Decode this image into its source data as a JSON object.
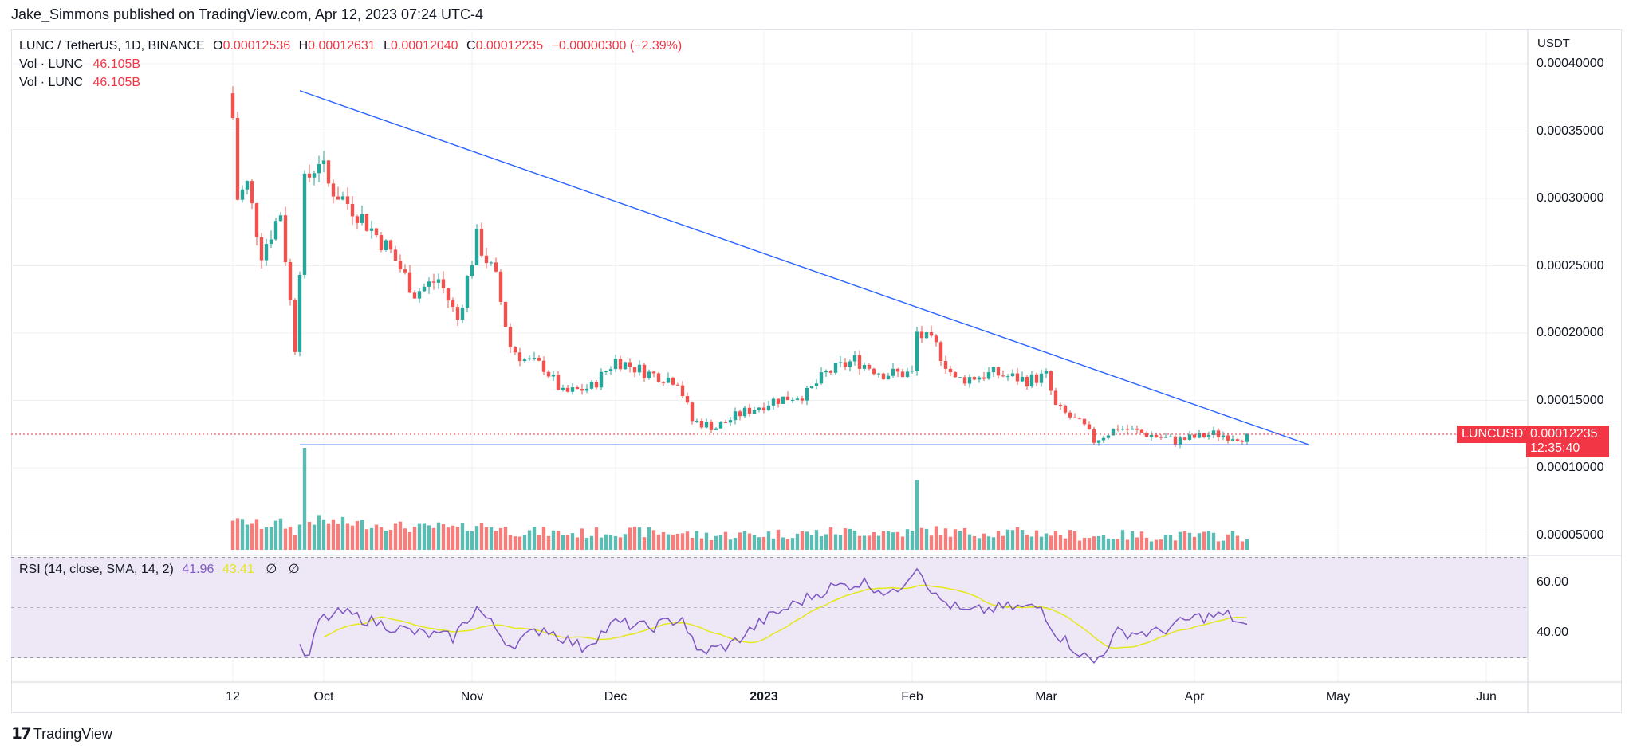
{
  "publisher": "Jake_Simmons published on TradingView.com, Apr 12, 2023 07:24 UTC-4",
  "legend": {
    "symbol": "LUNC / TetherUS, 1D, BINANCE",
    "open_label": "O",
    "open": "0.00012536",
    "high_label": "H",
    "high": "0.00012631",
    "low_label": "L",
    "low": "0.00012040",
    "close_label": "C",
    "close": "0.00012235",
    "change": "−0.00000300 (−2.39%)",
    "vol1_label": "Vol · LUNC",
    "vol1": "46.105B",
    "vol2_label": "Vol · LUNC",
    "vol2": "46.105B"
  },
  "rsi_legend": {
    "label": "RSI (14, close, SMA, 14, 2)",
    "rsi": "41.96",
    "sma": "43.41",
    "icon1": "∅",
    "icon2": "∅"
  },
  "price_axis": {
    "unit": "USDT",
    "ticks": [
      "0.00040000",
      "0.00035000",
      "0.00030000",
      "0.00025000",
      "0.00020000",
      "0.00015000",
      "0.00010000",
      "0.00005000"
    ]
  },
  "rsi_axis": {
    "ticks": [
      "60.00",
      "40.00"
    ]
  },
  "date_axis": {
    "ticks": [
      "12",
      "Oct",
      "Nov",
      "Dec",
      "2023",
      "Feb",
      "Mar",
      "Apr",
      "May",
      "Jun"
    ]
  },
  "current": {
    "pair": "LUNCUSDT",
    "price": "0.00012235",
    "countdown": "12:35:40"
  },
  "brand": "TradingView",
  "colors": {
    "up": "#26a69a",
    "down": "#ef5350",
    "trendline": "#2962ff",
    "rsi": "#7e57c2",
    "rsi_sma": "#e5e81c",
    "rsi_band": "#ede7f6",
    "badge": "#f23645",
    "grid": "#eef0f4"
  },
  "chart_data": {
    "type": "candlestick",
    "title": "LUNC / TetherUS, 1D, BINANCE",
    "x_ticks": [
      "12",
      "Oct",
      "Nov",
      "Dec",
      "2023",
      "Feb",
      "Mar",
      "Apr",
      "May",
      "Jun"
    ],
    "y_unit": "USDT",
    "y_range": [
      3e-05,
      0.00043
    ],
    "last_price": 0.00012235,
    "close_path": [
      [
        "2022-09-12",
        0.00036
      ],
      [
        "2022-09-13",
        0.0003
      ],
      [
        "2022-09-15",
        0.00031
      ],
      [
        "2022-09-18",
        0.00026
      ],
      [
        "2022-09-22",
        0.00029
      ],
      [
        "2022-09-25",
        0.00019
      ],
      [
        "2022-09-27",
        0.00031
      ],
      [
        "2022-09-30",
        0.00033
      ],
      [
        "2022-10-02",
        0.00031
      ],
      [
        "2022-10-08",
        0.00029
      ],
      [
        "2022-10-15",
        0.00026
      ],
      [
        "2022-10-20",
        0.00023
      ],
      [
        "2022-10-25",
        0.00024
      ],
      [
        "2022-10-29",
        0.00021
      ],
      [
        "2022-11-02",
        0.00027
      ],
      [
        "2022-11-06",
        0.00024
      ],
      [
        "2022-11-09",
        0.00019
      ],
      [
        "2022-11-12",
        0.00018
      ],
      [
        "2022-11-16",
        0.000175
      ],
      [
        "2022-11-20",
        0.000155
      ],
      [
        "2022-11-26",
        0.00016
      ],
      [
        "2022-12-01",
        0.00018
      ],
      [
        "2022-12-08",
        0.00017
      ],
      [
        "2022-12-14",
        0.000165
      ],
      [
        "2022-12-17",
        0.000135
      ],
      [
        "2022-12-22",
        0.00013
      ],
      [
        "2022-12-27",
        0.00014
      ],
      [
        "2023-01-03",
        0.00015
      ],
      [
        "2023-01-10",
        0.000155
      ],
      [
        "2023-01-14",
        0.00017
      ],
      [
        "2023-01-20",
        0.00018
      ],
      [
        "2023-01-26",
        0.00017
      ],
      [
        "2023-02-01",
        0.00017
      ],
      [
        "2023-02-02",
        0.0002
      ],
      [
        "2023-02-06",
        0.00019
      ],
      [
        "2023-02-10",
        0.000165
      ],
      [
        "2023-02-18",
        0.00017
      ],
      [
        "2023-02-25",
        0.000165
      ],
      [
        "2023-03-01",
        0.000168
      ],
      [
        "2023-03-03",
        0.000145
      ],
      [
        "2023-03-09",
        0.00013
      ],
      [
        "2023-03-11",
        0.00012
      ],
      [
        "2023-03-16",
        0.00013
      ],
      [
        "2023-03-22",
        0.000125
      ],
      [
        "2023-03-28",
        0.00012
      ],
      [
        "2023-04-05",
        0.000125
      ],
      [
        "2023-04-12",
        0.00012235
      ]
    ],
    "annotations": [
      {
        "type": "trendline",
        "from": [
          "2022-09-26",
          0.00038
        ],
        "to": [
          "2023-04-25",
          0.000117
        ]
      },
      {
        "type": "horizontal",
        "from": [
          "2022-09-26",
          0.000117
        ],
        "to": [
          "2023-04-25",
          0.000117
        ]
      }
    ],
    "volume_spikes": [
      {
        "date": "2022-09-27",
        "note": "largest"
      },
      {
        "date": "2023-02-02",
        "note": "second largest"
      }
    ],
    "rsi": {
      "period": 14,
      "sma": 14,
      "last_rsi": 41.96,
      "last_sma": 43.41,
      "bands": [
        30,
        70
      ],
      "midline": 50,
      "path": [
        [
          "2022-09-26",
          33
        ],
        [
          "2022-09-28",
          30
        ],
        [
          "2022-09-30",
          45
        ],
        [
          "2022-10-05",
          48
        ],
        [
          "2022-10-12",
          44
        ],
        [
          "2022-10-20",
          40
        ],
        [
          "2022-10-28",
          38
        ],
        [
          "2022-11-02",
          50
        ],
        [
          "2022-11-09",
          35
        ],
        [
          "2022-11-16",
          42
        ],
        [
          "2022-11-24",
          34
        ],
        [
          "2022-12-01",
          44
        ],
        [
          "2022-12-08",
          42
        ],
        [
          "2022-12-15",
          46
        ],
        [
          "2022-12-18",
          32
        ],
        [
          "2022-12-25",
          35
        ],
        [
          "2023-01-01",
          45
        ],
        [
          "2023-01-08",
          52
        ],
        [
          "2023-01-15",
          58
        ],
        [
          "2023-01-22",
          60
        ],
        [
          "2023-01-28",
          55
        ],
        [
          "2023-02-02",
          67
        ],
        [
          "2023-02-06",
          54
        ],
        [
          "2023-02-12",
          48
        ],
        [
          "2023-02-20",
          50
        ],
        [
          "2023-02-28",
          50
        ],
        [
          "2023-03-03",
          40
        ],
        [
          "2023-03-08",
          32
        ],
        [
          "2023-03-11",
          28
        ],
        [
          "2023-03-16",
          40
        ],
        [
          "2023-03-24",
          40
        ],
        [
          "2023-04-01",
          46
        ],
        [
          "2023-04-08",
          47
        ],
        [
          "2023-04-12",
          41.96
        ]
      ]
    }
  }
}
